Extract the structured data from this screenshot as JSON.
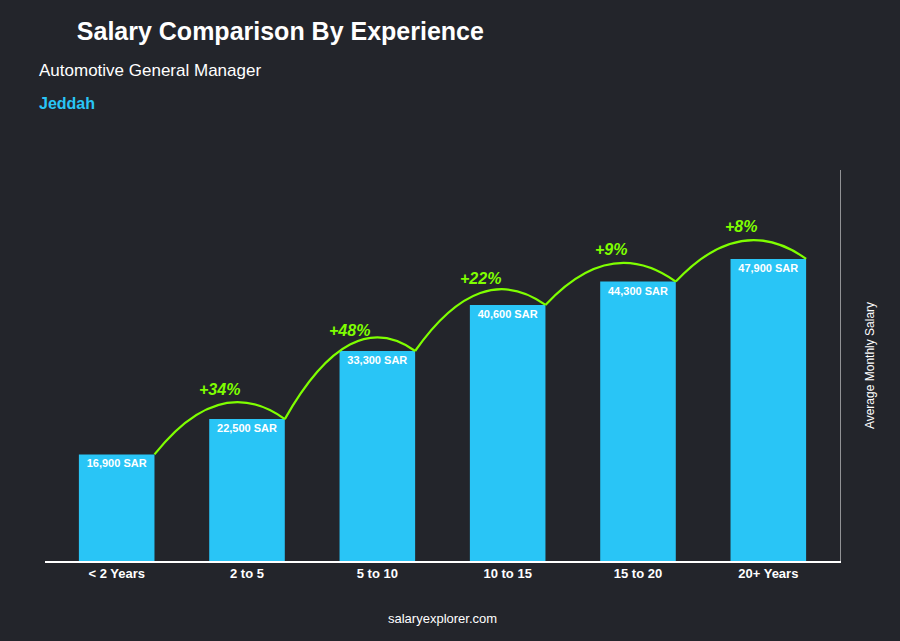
{
  "chart_data": {
    "type": "bar",
    "title": "Salary Comparison By Experience",
    "subtitle": "Automotive General Manager",
    "ylabel": "Average Monthly Salary",
    "categories": [
      "< 2 Years",
      "2 to 5",
      "5 to 10",
      "10 to 15",
      "15 to 20",
      "20+ Years"
    ],
    "values": [
      16900,
      22500,
      33300,
      40600,
      44300,
      47900
    ],
    "value_labels": [
      "16,900 SAR",
      "22,500 SAR",
      "33,300 SAR",
      "40,600 SAR",
      "44,300 SAR",
      "47,900 SAR"
    ],
    "data_labels": true,
    "color": "#29C5F6",
    "changes": {
      "color": "#7FFF00",
      "values": [
        34,
        48,
        22,
        9,
        8
      ],
      "value_labels": [
        "+34%",
        "+48%",
        "+22%",
        "+9%",
        "+8%"
      ]
    },
    "annotations": [
      {
        "text": "Jeddah",
        "color": "#29C5F6"
      },
      {
        "text": "salaryexplorer.com"
      }
    ],
    "ylim": [
      0,
      62000
    ],
    "yticks": [],
    "tick_labels": "x",
    "grid": false
  }
}
